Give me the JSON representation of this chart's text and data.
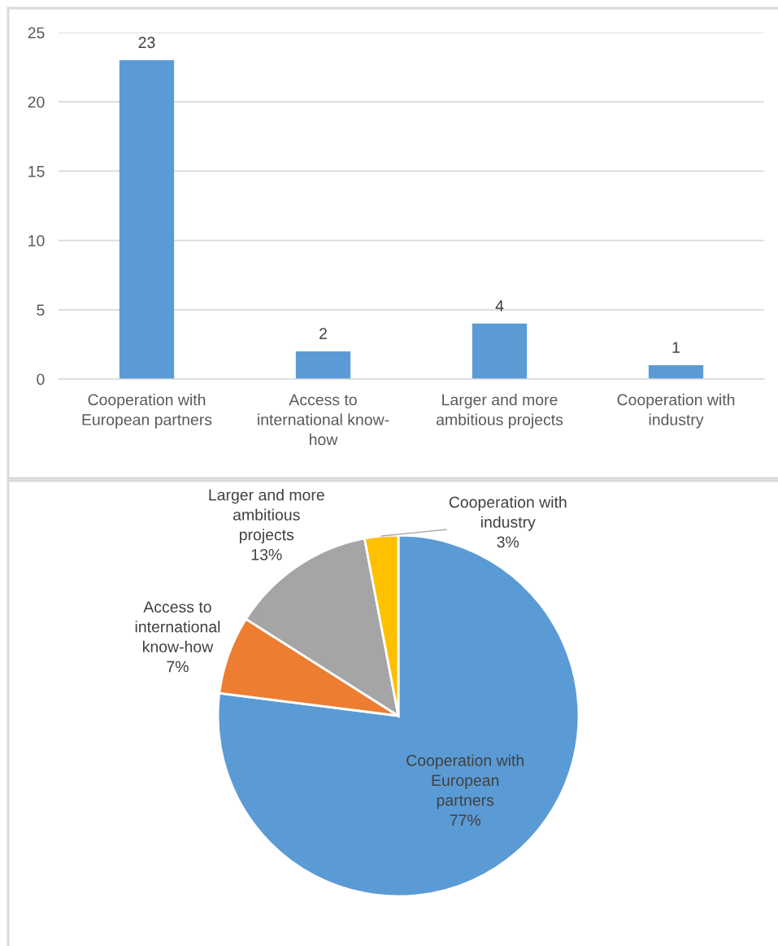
{
  "chart_data": [
    {
      "type": "bar",
      "categories": [
        "Cooperation with European partners",
        "Access to international know-how",
        "Larger and more ambitious projects",
        "Cooperation with industry"
      ],
      "values": [
        23,
        2,
        4,
        1
      ],
      "color": "#5b9bd5",
      "ylim": [
        0,
        25
      ],
      "yticks": [
        0,
        5,
        10,
        15,
        20,
        25
      ],
      "grid": "y",
      "data_labels": true
    },
    {
      "type": "pie",
      "categories": [
        "Cooperation with European partners",
        "Access to international know-how",
        "Larger and more ambitious projects",
        "Cooperation with industry"
      ],
      "values": [
        77,
        7,
        13,
        3
      ],
      "colors": [
        "#5b9bd5",
        "#ed7d31",
        "#a5a5a5",
        "#ffc000"
      ],
      "value_labels": [
        "77%",
        "7%",
        "13%",
        "3%"
      ]
    }
  ]
}
